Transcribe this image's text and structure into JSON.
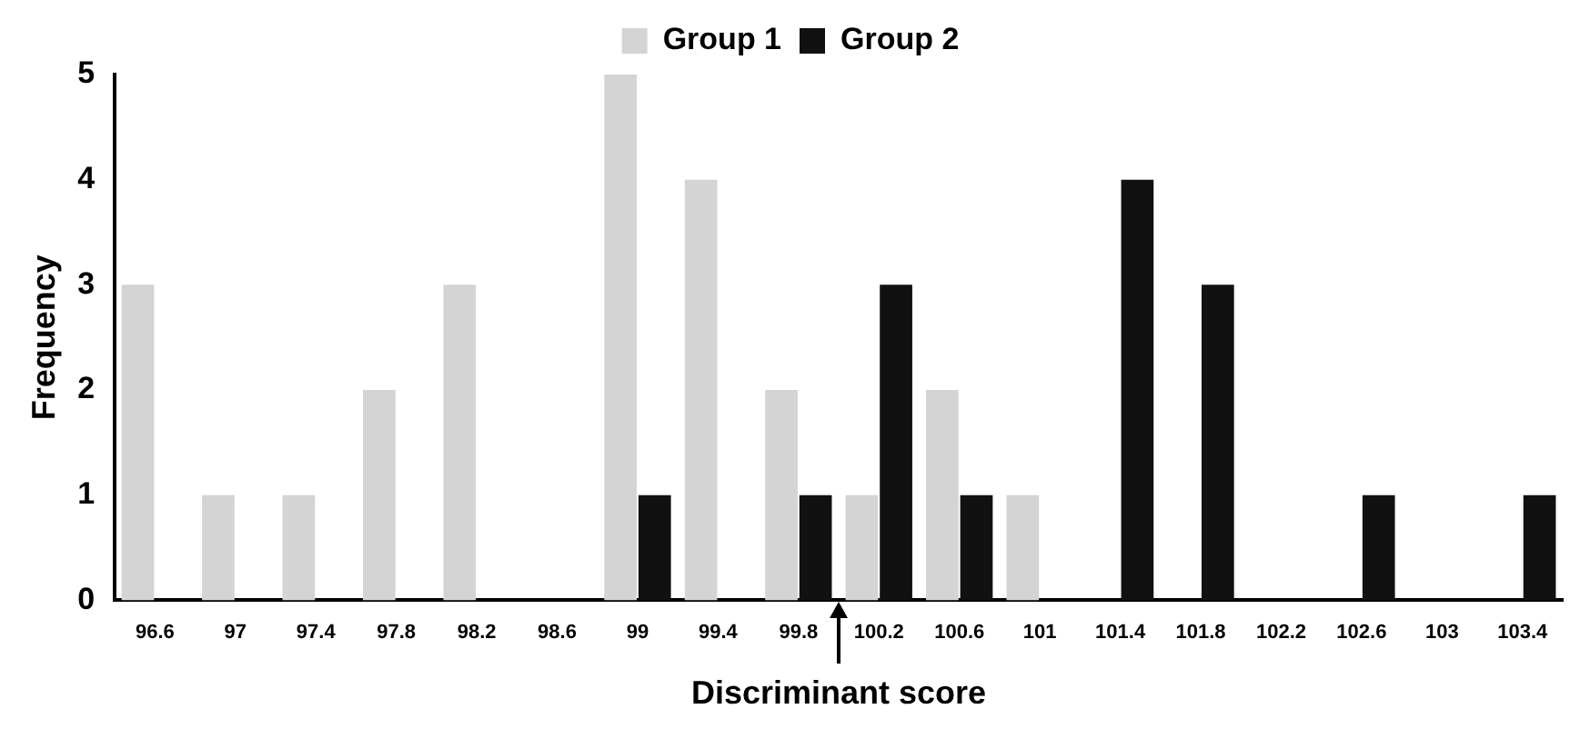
{
  "chart_data": {
    "type": "bar",
    "xlabel": "Discriminant score",
    "ylabel": "Frequency",
    "categories": [
      "96.6",
      "97",
      "97.4",
      "97.8",
      "98.2",
      "98.6",
      "99",
      "99.4",
      "99.8",
      "100.2",
      "100.6",
      "101",
      "101.4",
      "101.8",
      "102.2",
      "102.6",
      "103",
      "103.4"
    ],
    "series": [
      {
        "name": "Group 1",
        "color": "#d4d4d4",
        "values": [
          3,
          1,
          1,
          2,
          3,
          0,
          5,
          4,
          2,
          1,
          2,
          1,
          0,
          0,
          0,
          0,
          0,
          0
        ]
      },
      {
        "name": "Group 2",
        "color": "#111111",
        "values": [
          0,
          0,
          0,
          0,
          0,
          0,
          1,
          0,
          1,
          3,
          1,
          0,
          4,
          3,
          0,
          1,
          0,
          1
        ]
      }
    ],
    "ylim": [
      0,
      5
    ],
    "yticks": [
      0,
      1,
      2,
      3,
      4,
      5
    ],
    "grid": false,
    "legend": "top"
  }
}
